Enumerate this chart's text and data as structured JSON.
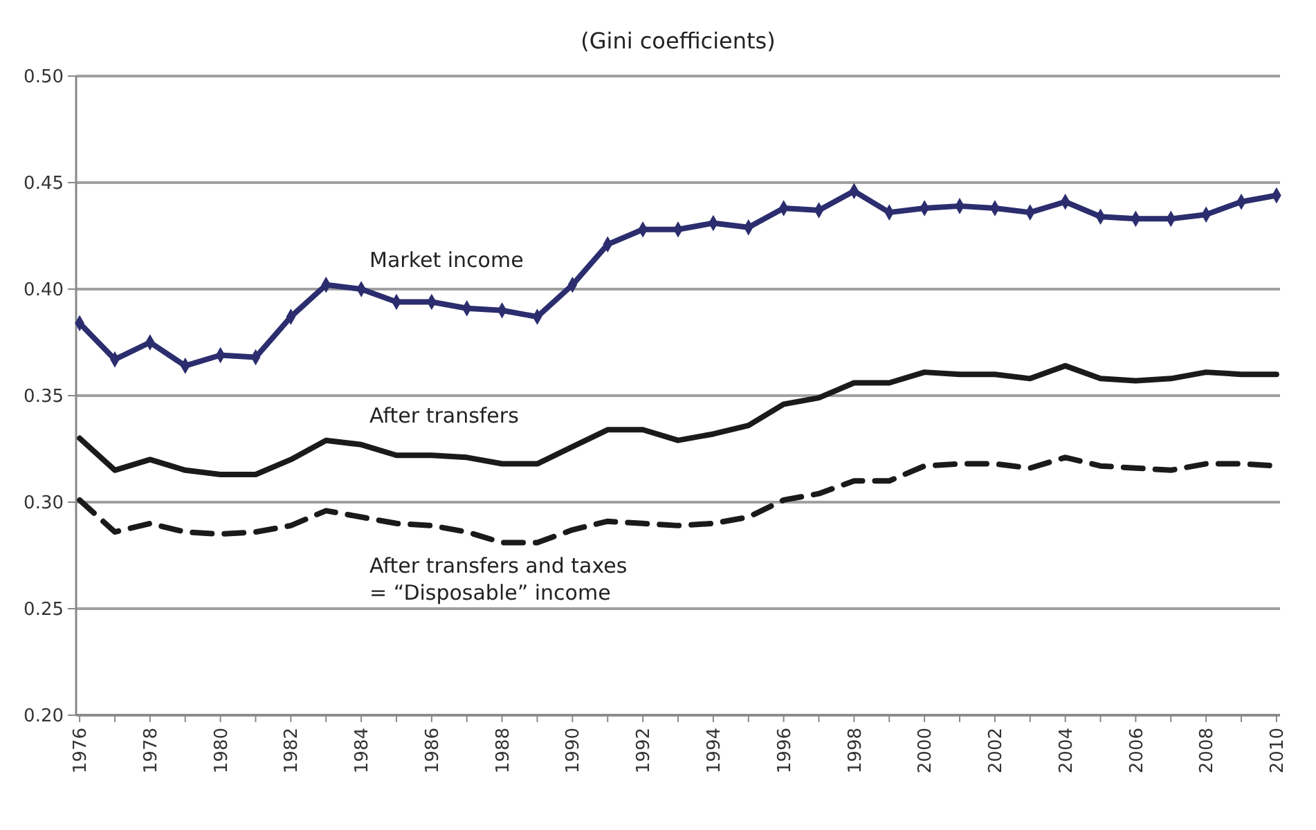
{
  "chart_data": {
    "type": "line",
    "title": "(Gini coefficients)",
    "categories": [
      "1976",
      null,
      "1978",
      null,
      "1980",
      null,
      "1982",
      null,
      "1984",
      null,
      "1986",
      null,
      "1988",
      null,
      "1990",
      null,
      "1992",
      null,
      "1994",
      null,
      "1996",
      null,
      "1998",
      null,
      "2000",
      null,
      "2002",
      null,
      "2004",
      null,
      "2006",
      null,
      "2008",
      null,
      "2010"
    ],
    "ylim": [
      0.2,
      0.5
    ],
    "yticks": [
      {
        "value": 0.2,
        "label": "0.20"
      },
      {
        "value": 0.25,
        "label": "0.25"
      },
      {
        "value": 0.3,
        "label": "0.30"
      },
      {
        "value": 0.35,
        "label": "0.35"
      },
      {
        "value": 0.4,
        "label": "0.40"
      },
      {
        "value": 0.45,
        "label": "0.45"
      },
      {
        "value": 0.5,
        "label": "0.50"
      }
    ],
    "grid": "y",
    "series": [
      {
        "name": "Market income",
        "color": "#2b2d6e",
        "marker": "diamond",
        "line_style": "solid",
        "values": [
          0.384,
          0.367,
          0.375,
          0.364,
          0.369,
          0.368,
          0.387,
          0.402,
          0.4,
          0.394,
          0.394,
          0.391,
          0.39,
          0.387,
          0.402,
          0.421,
          0.428,
          0.428,
          0.431,
          0.429,
          0.438,
          0.437,
          0.446,
          0.436,
          0.438,
          0.439,
          0.438,
          0.436,
          0.441,
          0.434,
          0.433,
          0.433,
          0.435,
          0.441,
          0.444
        ]
      },
      {
        "name": "After transfers",
        "color": "#1a1a1a",
        "marker": "none",
        "line_style": "solid",
        "values": [
          0.33,
          0.315,
          0.32,
          0.315,
          0.313,
          0.313,
          0.32,
          0.329,
          0.327,
          0.322,
          0.322,
          0.321,
          0.318,
          0.318,
          0.326,
          0.334,
          0.334,
          0.329,
          0.332,
          0.336,
          0.346,
          0.349,
          0.356,
          0.356,
          0.361,
          0.36,
          0.36,
          0.358,
          0.364,
          0.358,
          0.357,
          0.358,
          0.361,
          0.36,
          0.36
        ]
      },
      {
        "name": "After transfers and taxes\n= “Disposable” income",
        "color": "#1a1a1a",
        "marker": "none",
        "line_style": "dashed",
        "values": [
          0.301,
          0.286,
          0.29,
          0.286,
          0.285,
          0.286,
          0.289,
          0.296,
          0.293,
          0.29,
          0.289,
          0.286,
          0.281,
          0.281,
          0.287,
          0.291,
          0.29,
          0.289,
          0.29,
          0.293,
          0.301,
          0.304,
          0.31,
          0.31,
          0.317,
          0.318,
          0.318,
          0.316,
          0.321,
          0.317,
          0.316,
          0.315,
          0.318,
          0.318,
          0.317
        ]
      }
    ]
  }
}
